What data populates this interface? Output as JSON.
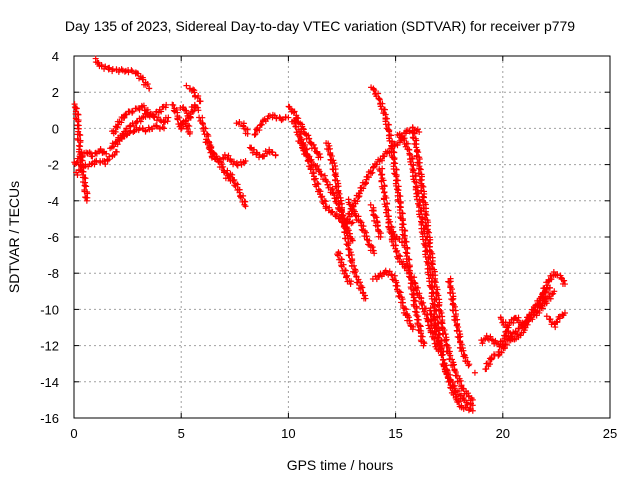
{
  "chart_data": {
    "type": "scatter",
    "title": "Day 135 of 2023, Sidereal Day-to-day VTEC variation (SDTVAR) for receiver p779",
    "xlabel": "GPS time / hours",
    "ylabel": "SDTVAR / TECUs",
    "xlim": [
      0,
      25
    ],
    "ylim": [
      -16,
      4
    ],
    "xticks": [
      "0",
      "5",
      "10",
      "15",
      "20",
      "25"
    ],
    "yticks": [
      "4",
      "2",
      "0",
      "-2",
      "-4",
      "-6",
      "-8",
      "-10",
      "-12",
      "-14",
      "-16"
    ],
    "grid": true,
    "marker": "+",
    "series_color": "#ff0000",
    "series": [
      {
        "x": [
          0.0,
          0.1,
          0.2,
          0.3,
          0.5,
          0.6
        ],
        "y": [
          1.3,
          1.2,
          0.0,
          -1.5,
          -3.0,
          -4.0
        ]
      },
      {
        "x": [
          0.0,
          0.3,
          0.6,
          0.9,
          1.2,
          1.5
        ],
        "y": [
          -2.0,
          -1.6,
          -1.3,
          -1.5,
          -1.2,
          -1.4
        ]
      },
      {
        "x": [
          0.1,
          0.4,
          0.8,
          1.1,
          1.4,
          1.7,
          2.0
        ],
        "y": [
          -2.5,
          -2.1,
          -2.0,
          -1.8,
          -1.9,
          -1.6,
          -1.3
        ]
      },
      {
        "x": [
          1.7,
          2.0,
          2.3,
          2.7,
          3.0,
          3.4,
          3.8,
          4.2
        ],
        "y": [
          -1.1,
          -0.7,
          -0.4,
          -0.2,
          0.0,
          -0.1,
          0.1,
          0.0
        ]
      },
      {
        "x": [
          1.8,
          2.1,
          2.4,
          2.8,
          3.2,
          3.6,
          4.0,
          4.3
        ],
        "y": [
          -0.3,
          0.3,
          0.8,
          1.0,
          1.2,
          0.7,
          1.0,
          1.3
        ]
      },
      {
        "x": [
          2.0,
          2.3,
          2.6,
          3.0,
          3.4,
          3.8,
          4.2,
          4.4
        ],
        "y": [
          -0.8,
          -0.3,
          0.1,
          0.4,
          0.8,
          0.6,
          0.3,
          0.6
        ]
      },
      {
        "x": [
          1.0,
          1.2,
          1.6,
          2.0,
          2.5,
          2.9,
          3.2,
          3.5
        ],
        "y": [
          3.8,
          3.5,
          3.3,
          3.2,
          3.2,
          3.1,
          2.7,
          2.2
        ]
      },
      {
        "x": [
          4.6,
          4.8,
          5.0,
          5.2,
          5.4
        ],
        "y": [
          1.3,
          0.8,
          0.0,
          0.5,
          -0.3
        ]
      },
      {
        "x": [
          5.0,
          5.2,
          5.4,
          5.6,
          5.8
        ],
        "y": [
          1.2,
          1.0,
          0.5,
          1.3,
          1.0
        ]
      },
      {
        "x": [
          5.3,
          5.5,
          5.7,
          5.9
        ],
        "y": [
          2.3,
          2.2,
          1.8,
          1.5
        ]
      },
      {
        "x": [
          5.9,
          6.2,
          6.5,
          6.8,
          7.1,
          7.4,
          7.7,
          8.0
        ],
        "y": [
          0.6,
          -0.5,
          -1.6,
          -1.8,
          -1.5,
          -1.9,
          -2.0,
          -1.8
        ]
      },
      {
        "x": [
          6.2,
          6.5,
          6.8,
          7.1,
          7.3
        ],
        "y": [
          -0.7,
          -1.4,
          -1.9,
          -2.6,
          -2.9
        ]
      },
      {
        "x": [
          7.2,
          7.5,
          7.8,
          8.0
        ],
        "y": [
          -2.4,
          -3.0,
          -3.7,
          -4.3
        ]
      },
      {
        "x": [
          7.6,
          7.9,
          8.1
        ],
        "y": [
          0.3,
          0.2,
          -0.3
        ]
      },
      {
        "x": [
          8.2,
          8.5,
          8.8,
          9.1,
          9.4
        ],
        "y": [
          -1.0,
          -1.4,
          -1.6,
          -1.2,
          -1.5
        ]
      },
      {
        "x": [
          8.4,
          8.7,
          9.0,
          9.3,
          9.6,
          10.0
        ],
        "y": [
          -0.4,
          0.2,
          0.6,
          0.7,
          0.5,
          0.6
        ]
      },
      {
        "x": [
          10.0,
          10.3,
          10.6,
          10.9,
          11.2,
          11.5
        ],
        "y": [
          1.2,
          0.8,
          0.1,
          -0.5,
          -1.1,
          -1.6
        ]
      },
      {
        "x": [
          10.2,
          10.5,
          10.8,
          11.1,
          11.4,
          11.8,
          12.2,
          12.6,
          13.0
        ],
        "y": [
          0.5,
          -0.3,
          -1.2,
          -2.3,
          -3.4,
          -4.4,
          -4.8,
          -5.2,
          -5.2
        ]
      },
      {
        "x": [
          10.5,
          10.8,
          11.2,
          11.6,
          12.0,
          12.4,
          12.7,
          13.0
        ],
        "y": [
          -0.6,
          -1.4,
          -2.0,
          -2.6,
          -3.4,
          -4.4,
          -5.5,
          -6.2
        ]
      },
      {
        "x": [
          11.8,
          12.1,
          12.4,
          12.7,
          13.0,
          13.3,
          13.6
        ],
        "y": [
          -0.8,
          -2.0,
          -4.0,
          -6.0,
          -7.6,
          -8.6,
          -9.4
        ]
      },
      {
        "x": [
          12.3,
          12.5,
          12.7,
          12.9
        ],
        "y": [
          -6.8,
          -7.5,
          -8.2,
          -8.6
        ]
      },
      {
        "x": [
          12.8,
          13.1,
          13.4,
          13.7,
          14.0
        ],
        "y": [
          -4.0,
          -4.7,
          -5.3,
          -6.2,
          -6.9
        ]
      },
      {
        "x": [
          12.7,
          13.0,
          13.3,
          13.6,
          14.0,
          14.4,
          14.8,
          15.2,
          15.5,
          15.8,
          16.1
        ],
        "y": [
          -5.2,
          -4.4,
          -3.6,
          -2.9,
          -2.1,
          -1.6,
          -1.1,
          -0.7,
          -0.2,
          0.0,
          -0.2
        ]
      },
      {
        "x": [
          13.9,
          14.2,
          14.5,
          14.8,
          15.1,
          15.4,
          15.7,
          16.0,
          16.3
        ],
        "y": [
          2.3,
          1.7,
          0.8,
          -0.8,
          -3.3,
          -5.9,
          -8.3,
          -10.4,
          -12.0
        ]
      },
      {
        "x": [
          13.9,
          14.1,
          14.3
        ],
        "y": [
          -4.3,
          -5.2,
          -6.0
        ]
      },
      {
        "x": [
          14.3,
          14.6,
          14.9,
          15.2,
          15.5,
          15.8,
          16.1,
          16.4,
          16.7,
          17.0
        ],
        "y": [
          -2.2,
          -4.6,
          -6.3,
          -7.3,
          -7.7,
          -8.3,
          -9.2,
          -10.2,
          -11.3,
          -12.3
        ]
      },
      {
        "x": [
          14.0,
          14.3,
          14.6,
          14.9,
          15.2,
          15.5,
          15.8
        ],
        "y": [
          -8.3,
          -8.1,
          -7.9,
          -8.2,
          -9.2,
          -10.3,
          -11.1
        ]
      },
      {
        "x": [
          14.7,
          15.0,
          15.3
        ],
        "y": [
          -5.5,
          -6.0,
          -6.3
        ]
      },
      {
        "x": [
          15.1,
          15.4,
          15.7,
          16.0,
          16.3,
          16.6,
          16.9,
          17.2
        ],
        "y": [
          -0.3,
          -0.6,
          -1.5,
          -3.5,
          -5.8,
          -8.2,
          -10.6,
          -12.5
        ]
      },
      {
        "x": [
          15.8,
          16.0,
          16.3,
          16.6,
          16.9,
          17.2,
          17.5,
          17.8,
          18.1,
          18.4,
          18.6
        ],
        "y": [
          -0.1,
          -1.2,
          -3.8,
          -6.6,
          -9.0,
          -11.0,
          -12.5,
          -13.5,
          -14.3,
          -14.8,
          -15.0
        ]
      },
      {
        "x": [
          16.6,
          16.9,
          17.2,
          17.5,
          17.8,
          18.1,
          18.4,
          18.6
        ],
        "y": [
          -10.0,
          -11.4,
          -12.7,
          -14.0,
          -14.9,
          -15.4,
          -15.5,
          -15.6
        ]
      },
      {
        "x": [
          17.2,
          17.6,
          18.0,
          18.4,
          18.6
        ],
        "y": [
          -13.0,
          -14.0,
          -14.8,
          -15.2,
          -15.3
        ]
      },
      {
        "x": [
          17.5,
          17.8,
          18.1,
          18.4
        ],
        "y": [
          -8.3,
          -10.5,
          -12.3,
          -13.1
        ]
      },
      {
        "x": [
          18.7
        ],
        "y": [
          -13.5
        ]
      },
      {
        "x": [
          19.0,
          19.3,
          19.6,
          19.9,
          20.2,
          20.5,
          20.9,
          21.3,
          21.7,
          22.0
        ],
        "y": [
          -11.8,
          -11.5,
          -11.8,
          -12.0,
          -11.2,
          -11.7,
          -11.3,
          -10.2,
          -9.8,
          -9.3
        ]
      },
      {
        "x": [
          19.2,
          19.5,
          19.8,
          20.1,
          20.4,
          20.8,
          21.2,
          21.6,
          22.0,
          22.4
        ],
        "y": [
          -13.3,
          -12.6,
          -12.5,
          -12.0,
          -11.5,
          -11.0,
          -10.6,
          -10.2,
          -9.6,
          -9.0
        ]
      },
      {
        "x": [
          19.9,
          20.2,
          20.6,
          21.0,
          21.4,
          21.8,
          22.2
        ],
        "y": [
          -10.5,
          -11.0,
          -10.4,
          -11.0,
          -10.1,
          -9.3,
          -8.8
        ]
      },
      {
        "x": [
          21.8,
          22.1,
          22.4,
          22.7,
          22.9
        ],
        "y": [
          -9.3,
          -8.5,
          -8.0,
          -8.2,
          -8.6
        ]
      },
      {
        "x": [
          22.1,
          22.4,
          22.7,
          22.9
        ],
        "y": [
          -10.4,
          -10.9,
          -10.4,
          -10.2
        ]
      }
    ]
  }
}
